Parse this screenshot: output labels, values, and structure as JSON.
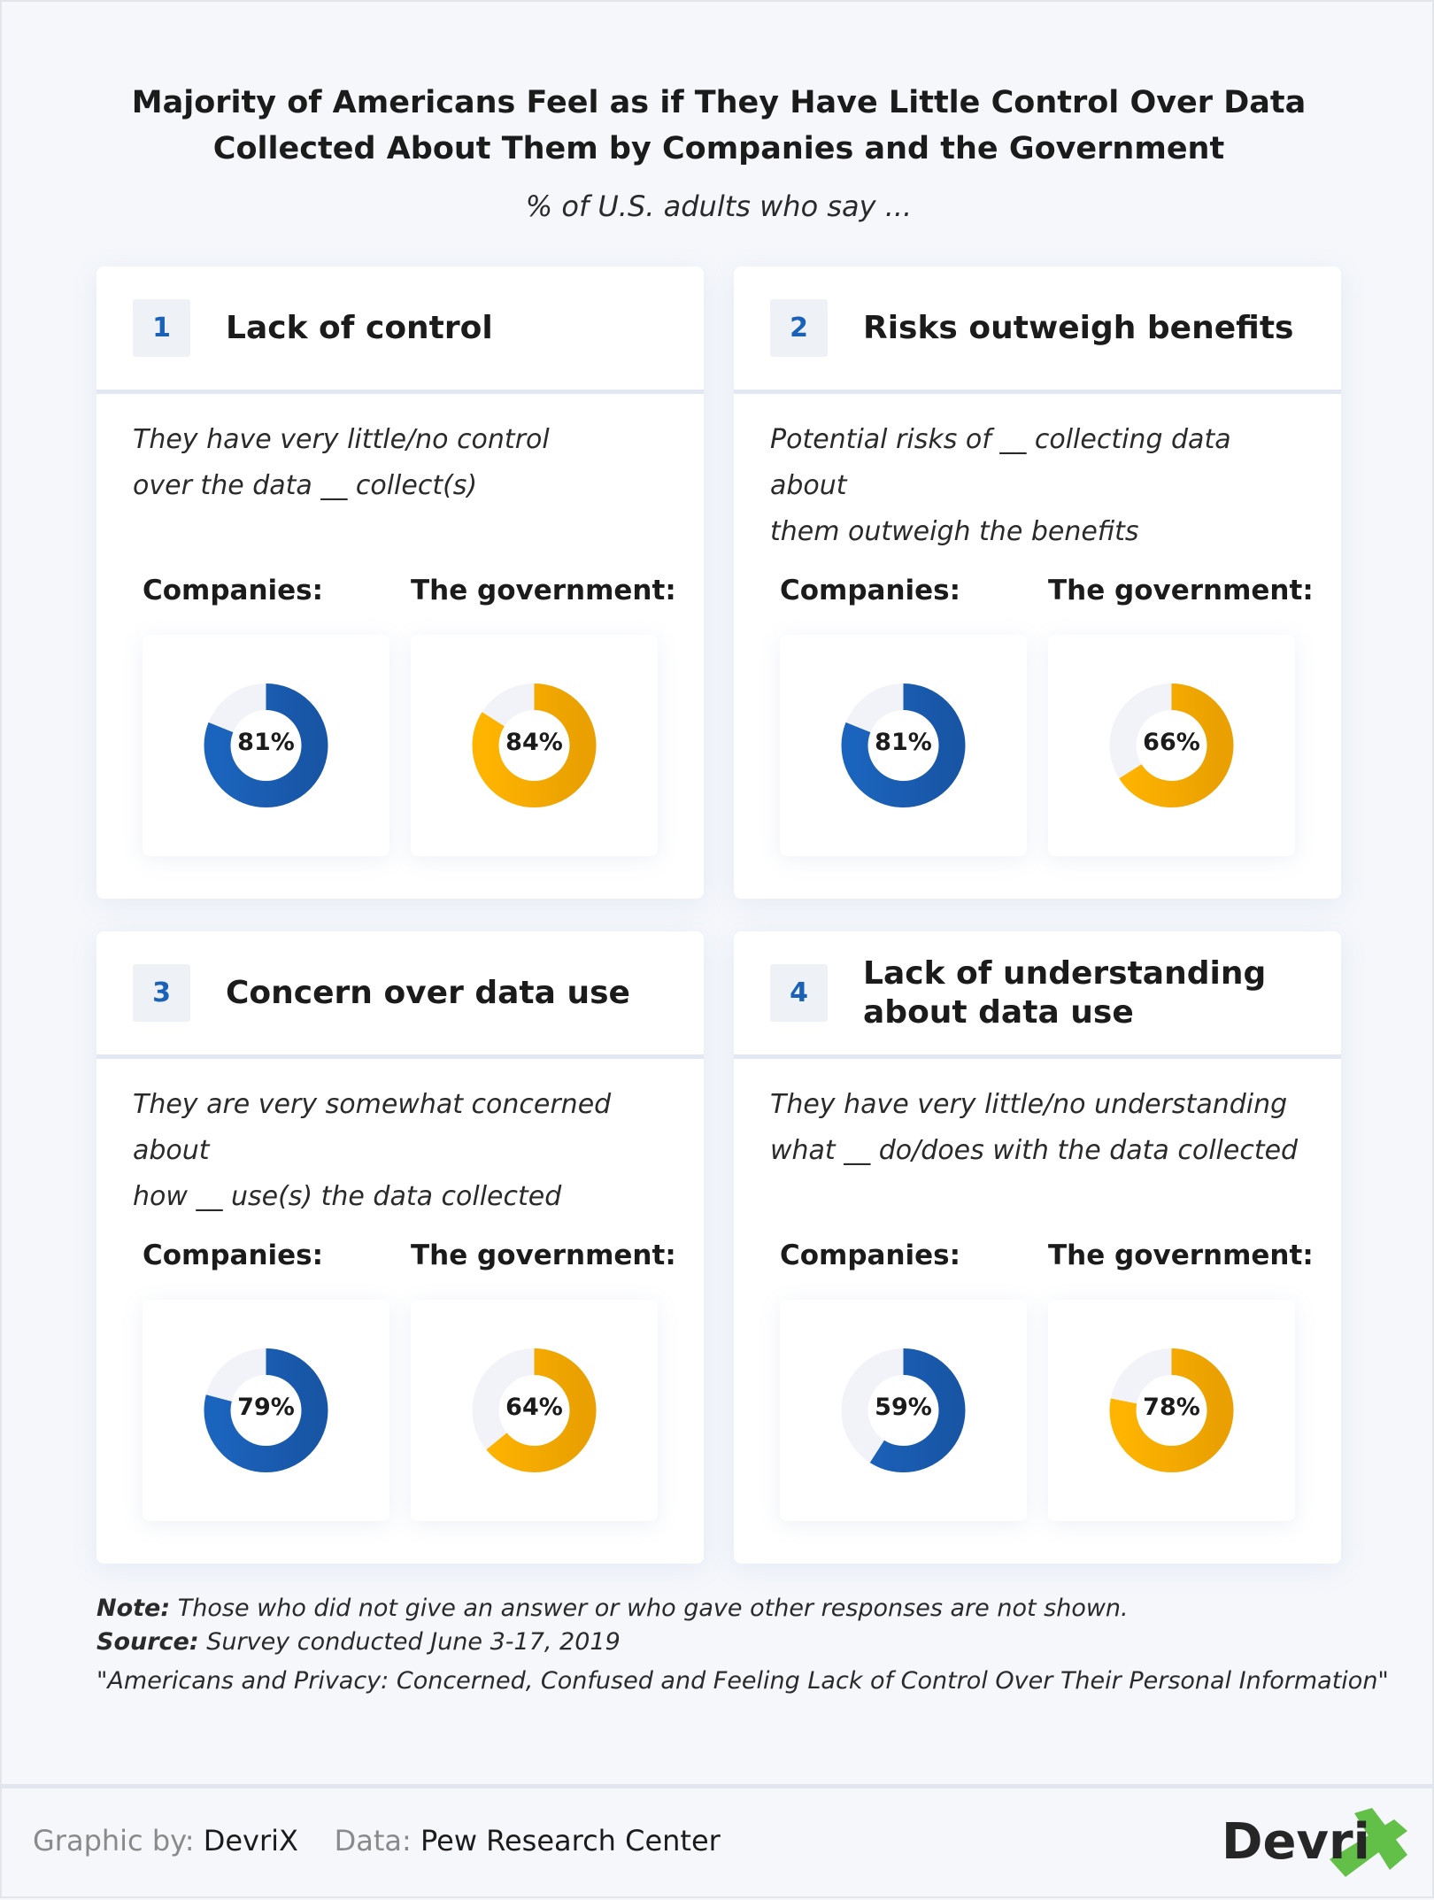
{
  "header": {
    "title_line1": "Majority of Americans Feel as if They Have Little Control Over Data",
    "title_line2": "Collected About Them by Companies and the Government",
    "subtitle": "% of U.S. adults who say ..."
  },
  "chart_data": {
    "type": "donut",
    "title": "Majority of Americans Feel as if They Have Little Control Over Data Collected About Them by Companies and the Government",
    "subtitle": "% of U.S. adults who say ...",
    "series_colors": {
      "Companies": "#1a62b8",
      "The government": "#f7ab00",
      "track": "#f1f3f8"
    },
    "panels": [
      {
        "number": "1",
        "title": "Lack of control",
        "desc1": "They have very little/no control",
        "desc2": "over the data __ collect(s)",
        "companies_label": "Companies:",
        "government_label": "The government:",
        "companies": 81,
        "government": 84,
        "companies_text": "81%",
        "government_text": "84%"
      },
      {
        "number": "2",
        "title": "Risks outweigh benefits",
        "desc1": "Potential risks of __ collecting data about",
        "desc2": "them outweigh the benefits",
        "companies_label": "Companies:",
        "government_label": "The government:",
        "companies": 81,
        "government": 66,
        "companies_text": "81%",
        "government_text": "66%"
      },
      {
        "number": "3",
        "title": "Concern over data use",
        "desc1": "They are very somewhat concerned about",
        "desc2": "how __ use(s) the data collected",
        "companies_label": "Companies:",
        "government_label": "The government:",
        "companies": 79,
        "government": 64,
        "companies_text": "79%",
        "government_text": "64%"
      },
      {
        "number": "4",
        "title": "Lack of understanding",
        "title2": "about data use",
        "desc1": "They have very little/no understanding",
        "desc2": "what __ do/does with the data collected",
        "companies_label": "Companies:",
        "government_label": "The government:",
        "companies": 59,
        "government": 78,
        "companies_text": "59%",
        "government_text": "78%"
      }
    ]
  },
  "notes": {
    "note_label": "Note:",
    "note": " Those who did not give an answer or who gave other responses are not shown.",
    "source_label": "Source:",
    "source": " Survey conducted June 3-17, 2019",
    "citation": "\"Americans and Privacy: Concerned, Confused and Feeling Lack of Control Over Their Personal Information\""
  },
  "footer": {
    "graphic_label": "Graphic by:",
    "graphic_value": "DevriX",
    "data_label": "Data:",
    "data_value": "Pew Research Center",
    "logo_text": "DevriX"
  }
}
